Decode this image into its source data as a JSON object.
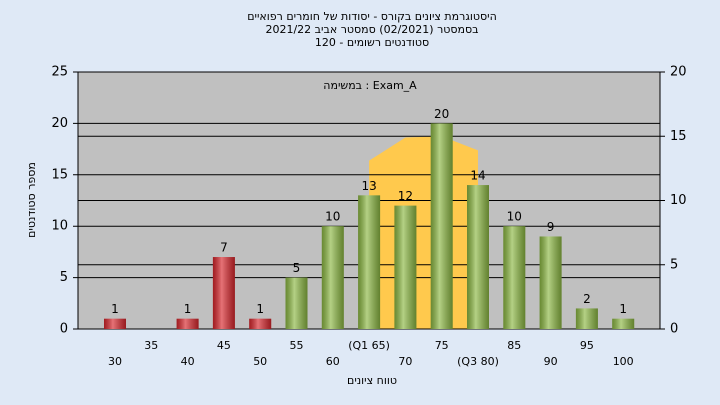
{
  "chart_data": {
    "type": "bar",
    "title": [
      "היסטוגרמת ציונים בקורס - יסודות של חומרים רפואיים",
      "בסמסטר  (02/2021)  סמסטר אביב 2021/22",
      "סטודנטים רשומים - 120"
    ],
    "annotation": "במשימה : Exam_A",
    "x_label": "טווח ציונים",
    "y_label": "מספר סטודנטים",
    "categories": [
      "30",
      "35",
      "40",
      "45",
      "50",
      "55",
      "60",
      "(Q1 65)",
      "70",
      "75",
      "(Q3 80)",
      "85",
      "90",
      "95",
      "100"
    ],
    "values": [
      1,
      null,
      1,
      7,
      1,
      5,
      10,
      13,
      12,
      20,
      14,
      10,
      9,
      2,
      1
    ],
    "colors": [
      "#d8262c",
      null,
      "#d8262c",
      "#d8262c",
      "#d8262c",
      "#8cb843",
      "#8cb843",
      "#8cb843",
      "#8cb843",
      "#8cb843",
      "#8cb843",
      "#8cb843",
      "#8cb843",
      "#8cb843",
      "#8cb843"
    ],
    "area": {
      "axis": "y2",
      "color": "#ffc94d",
      "categories": [
        "(Q1 65)",
        "70",
        "75",
        "(Q3 80)"
      ],
      "values": [
        13.1,
        14.9,
        15,
        13.9
      ]
    },
    "ylim": [
      0,
      25
    ],
    "yticks": [
      0,
      5,
      10,
      15,
      20,
      25
    ],
    "y2lim": [
      0,
      20
    ],
    "y2ticks": [
      0,
      5,
      10,
      15,
      20
    ],
    "grid": true
  }
}
